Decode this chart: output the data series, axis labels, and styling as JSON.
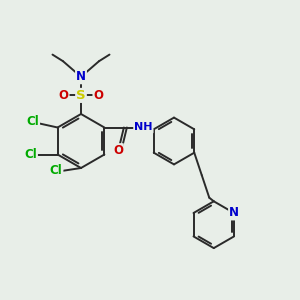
{
  "bg_color": "#e8eee8",
  "bond_color": "#2a2a2a",
  "bond_width": 1.4,
  "atom_colors": {
    "C": "#1a1a1a",
    "N": "#0000cc",
    "O": "#cc0000",
    "S": "#cccc00",
    "Cl": "#00aa00",
    "H": "#555555"
  },
  "font_size": 8.5,
  "fig_size": [
    3.0,
    3.0
  ],
  "dpi": 100,
  "xlim": [
    0,
    10
  ],
  "ylim": [
    0,
    10
  ]
}
